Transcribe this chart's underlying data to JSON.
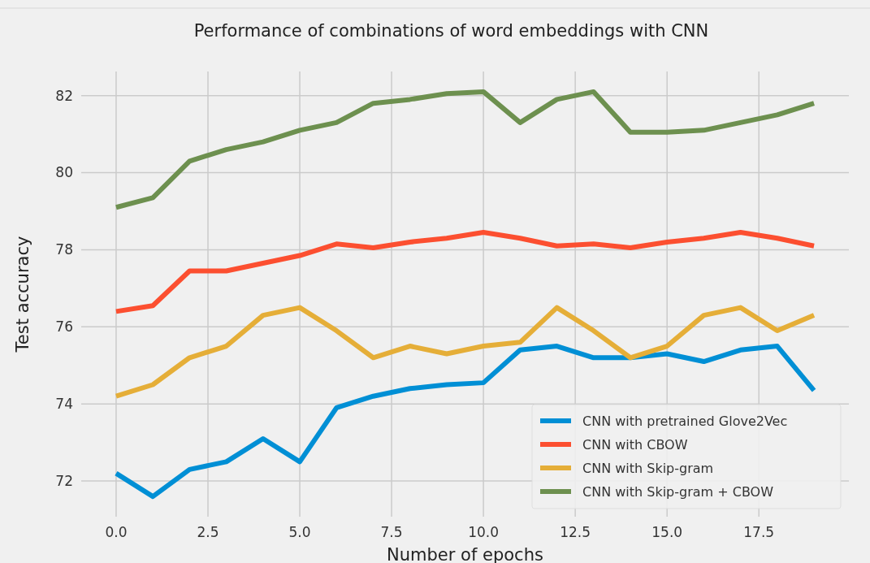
{
  "chart_data": {
    "type": "line",
    "title": "Performance of combinations of word embeddings with CNN",
    "xlabel": "Number of epochs",
    "ylabel": "Test accuracy",
    "x": [
      0,
      1,
      2,
      3,
      4,
      5,
      6,
      7,
      8,
      9,
      10,
      11,
      12,
      13,
      14,
      15,
      16,
      17,
      18,
      19
    ],
    "xlim": [
      -0.95,
      19.95
    ],
    "xticks": [
      {
        "value": 0,
        "label": "0.0"
      },
      {
        "value": 2.5,
        "label": "2.5"
      },
      {
        "value": 5,
        "label": "5.0"
      },
      {
        "value": 7.5,
        "label": "7.5"
      },
      {
        "value": 10,
        "label": "10.0"
      },
      {
        "value": 12.5,
        "label": "12.5"
      },
      {
        "value": 15,
        "label": "15.0"
      },
      {
        "value": 17.5,
        "label": "17.5"
      }
    ],
    "ylim": [
      71.075,
      82.625
    ],
    "yticks": [
      72,
      74,
      76,
      78,
      80,
      82
    ],
    "grid": true,
    "legend": "bottom right",
    "line_style": "solid",
    "marker": "none",
    "series": [
      {
        "name": "CNN with pretrained Glove2Vec",
        "color": "#008fd5",
        "values": [
          72.2,
          71.6,
          72.3,
          72.5,
          73.1,
          72.5,
          73.9,
          74.2,
          74.4,
          74.5,
          74.55,
          75.4,
          75.5,
          75.2,
          75.2,
          75.3,
          75.1,
          75.4,
          75.5,
          74.35
        ]
      },
      {
        "name": "CNN with CBOW",
        "color": "#fc4f30",
        "values": [
          76.4,
          76.55,
          77.45,
          77.45,
          77.65,
          77.85,
          78.15,
          78.05,
          78.2,
          78.3,
          78.45,
          78.3,
          78.1,
          78.15,
          78.05,
          78.2,
          78.3,
          78.45,
          78.3,
          78.1
        ]
      },
      {
        "name": "CNN with Skip-gram",
        "color": "#e5ae38",
        "values": [
          74.2,
          74.5,
          75.2,
          75.5,
          76.3,
          76.5,
          75.9,
          75.2,
          75.5,
          75.3,
          75.5,
          75.6,
          76.5,
          75.9,
          75.2,
          75.5,
          76.3,
          76.5,
          75.9,
          76.3
        ]
      },
      {
        "name": "CNN with Skip-gram + CBOW",
        "color": "#6d904f",
        "values": [
          79.1,
          79.35,
          80.3,
          80.6,
          80.8,
          81.1,
          81.3,
          81.8,
          81.9,
          82.05,
          82.1,
          81.3,
          81.9,
          82.1,
          81.05,
          81.05,
          81.1,
          81.3,
          81.5,
          81.8
        ]
      }
    ]
  }
}
